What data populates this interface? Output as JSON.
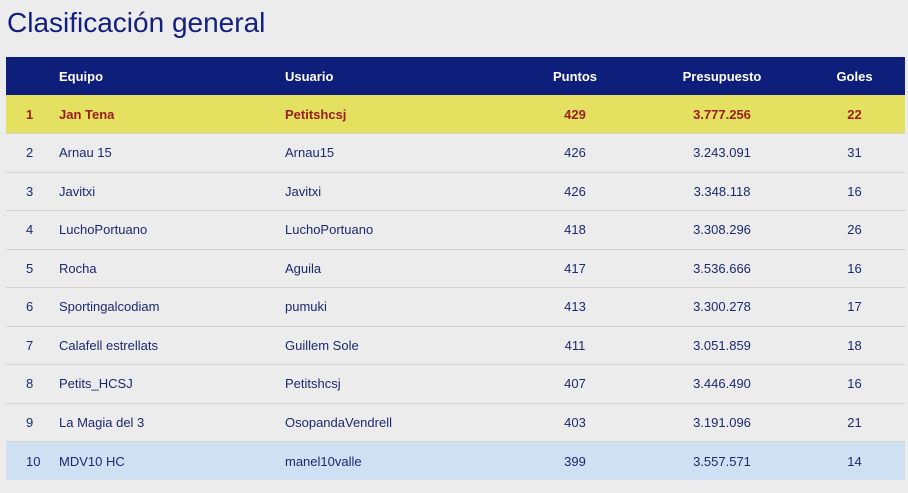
{
  "page": {
    "title": "Clasificación general"
  },
  "table": {
    "headers": {
      "pos": "",
      "team": "Equipo",
      "user": "Usuario",
      "points": "Puntos",
      "budget": "Presupuesto",
      "goals": "Goles"
    },
    "rows": [
      {
        "pos": "1",
        "team": "Jan Tena",
        "user": "Petitshcsj",
        "points": "429",
        "budget": "3.777.256",
        "goals": "22"
      },
      {
        "pos": "2",
        "team": "Arnau 15",
        "user": "Arnau15",
        "points": "426",
        "budget": "3.243.091",
        "goals": "31"
      },
      {
        "pos": "3",
        "team": "Javitxi",
        "user": "Javitxi",
        "points": "426",
        "budget": "3.348.118",
        "goals": "16"
      },
      {
        "pos": "4",
        "team": "LuchoPortuano",
        "user": "LuchoPortuano",
        "points": "418",
        "budget": "3.308.296",
        "goals": "26"
      },
      {
        "pos": "5",
        "team": "Rocha",
        "user": "Aguila",
        "points": "417",
        "budget": "3.536.666",
        "goals": "16"
      },
      {
        "pos": "6",
        "team": "Sportingalcodiam",
        "user": "pumuki",
        "points": "413",
        "budget": "3.300.278",
        "goals": "17"
      },
      {
        "pos": "7",
        "team": "Calafell estrellats",
        "user": "Guillem Sole",
        "points": "411",
        "budget": "3.051.859",
        "goals": "18"
      },
      {
        "pos": "8",
        "team": "Petits_HCSJ",
        "user": "Petitshcsj",
        "points": "407",
        "budget": "3.446.490",
        "goals": "16"
      },
      {
        "pos": "9",
        "team": "La Magia del 3",
        "user": "OsopandaVendrell",
        "points": "403",
        "budget": "3.191.096",
        "goals": "21"
      },
      {
        "pos": "10",
        "team": "MDV10 HC",
        "user": "manel10valle",
        "points": "399",
        "budget": "3.557.571",
        "goals": "14"
      }
    ]
  },
  "colors": {
    "header_bg": "#0e1f7b",
    "leader_row": "#e3e15f",
    "leader_text": "#9b1c1c",
    "highlight_row": "#cfe0f3",
    "text": "#1a2a6e"
  }
}
